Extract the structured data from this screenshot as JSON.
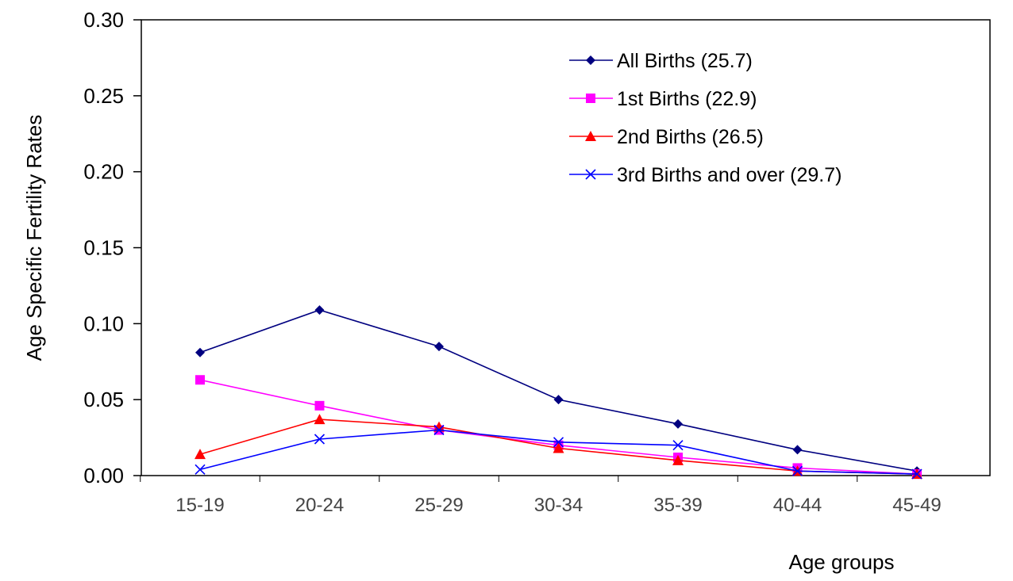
{
  "chart_data": {
    "type": "line",
    "ylabel": "Age Specific Fertility Rates",
    "xlabel": "Age groups",
    "ylim": [
      0,
      0.3
    ],
    "yticks": [
      "0.00",
      "0.05",
      "0.10",
      "0.15",
      "0.20",
      "0.25",
      "0.30"
    ],
    "categories": [
      "15-19",
      "20-24",
      "25-29",
      "30-34",
      "35-39",
      "40-44",
      "45-49"
    ],
    "legend_position": "top-right",
    "series": [
      {
        "name": "All Births (25.7)",
        "color": "#000080",
        "marker": "diamond",
        "values": [
          0.081,
          0.109,
          0.085,
          0.05,
          0.034,
          0.017,
          0.003
        ]
      },
      {
        "name": "1st Births (22.9)",
        "color": "#ff00ff",
        "marker": "square",
        "values": [
          0.063,
          0.046,
          0.03,
          0.02,
          0.012,
          0.005,
          0.001
        ]
      },
      {
        "name": "2nd Births (26.5)",
        "color": "#ff0000",
        "marker": "triangle",
        "values": [
          0.014,
          0.037,
          0.032,
          0.018,
          0.01,
          0.003,
          0.001
        ]
      },
      {
        "name": "3rd Births and over (29.7)",
        "color": "#0000ff",
        "marker": "x",
        "values": [
          0.004,
          0.024,
          0.03,
          0.022,
          0.02,
          0.003,
          0.001
        ]
      }
    ]
  }
}
